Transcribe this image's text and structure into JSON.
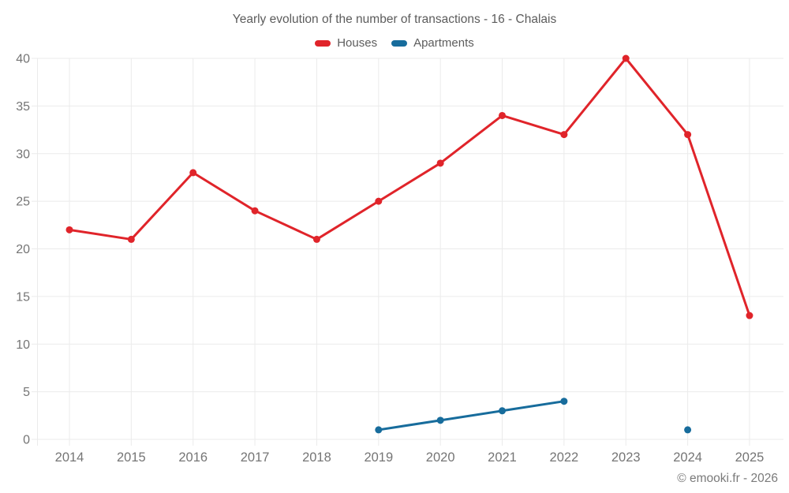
{
  "title": "Yearly evolution of the number of transactions - 16 - Chalais",
  "footer": "© emooki.fr - 2026",
  "colors": {
    "houses": "#e0242a",
    "apartments": "#176c9c",
    "grid": "#ebebeb",
    "axis_label": "#757575",
    "title_text": "#5c5c5c"
  },
  "chart_data": {
    "type": "line",
    "title": "Yearly evolution of the number of transactions - 16 - Chalais",
    "xlabel": "",
    "ylabel": "",
    "x": [
      2014,
      2015,
      2016,
      2017,
      2018,
      2019,
      2020,
      2021,
      2022,
      2023,
      2024,
      2025
    ],
    "series": [
      {
        "name": "Houses",
        "color": "#e0242a",
        "values": [
          22,
          21,
          28,
          24,
          21,
          25,
          29,
          34,
          32,
          40,
          32,
          13
        ]
      },
      {
        "name": "Apartments",
        "color": "#176c9c",
        "values": [
          null,
          null,
          null,
          null,
          null,
          1,
          2,
          3,
          4,
          null,
          1,
          null
        ]
      }
    ],
    "ylim": [
      0,
      40
    ],
    "ytick_step": 5,
    "grid": true,
    "legend_position": "top"
  }
}
